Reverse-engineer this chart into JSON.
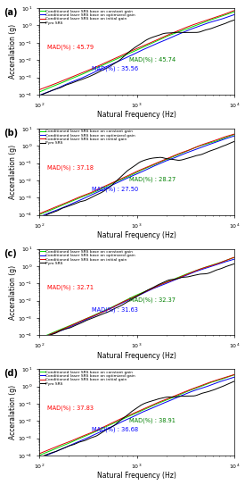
{
  "panels": [
    "(a)",
    "(b)",
    "(c)",
    "(d)"
  ],
  "legend_labels": [
    "Conditioned laser SRS base on constant gain",
    "Conditioned laser SRS base on optimized gain",
    "Conditioned laser SRS base on initial gain",
    "Pyro SRS"
  ],
  "line_colors": [
    "#00dd00",
    "#0000ee",
    "#dd0000",
    "#000000"
  ],
  "mad_values": [
    {
      "red": "45.79",
      "green": "45.74",
      "blue": "35.56"
    },
    {
      "red": "37.18",
      "green": "28.27",
      "blue": "27.50"
    },
    {
      "red": "32.71",
      "green": "32.37",
      "blue": "31.63"
    },
    {
      "red": "37.83",
      "green": "38.91",
      "blue": "36.68"
    }
  ],
  "xlabel": "Natural Frequency (Hz)",
  "ylabel": "Acceralation (g)",
  "xlim_log": [
    100,
    10000
  ],
  "ylim_log": [
    0.0001,
    10
  ],
  "figsize": [
    2.75,
    5.43
  ],
  "dpi": 100
}
